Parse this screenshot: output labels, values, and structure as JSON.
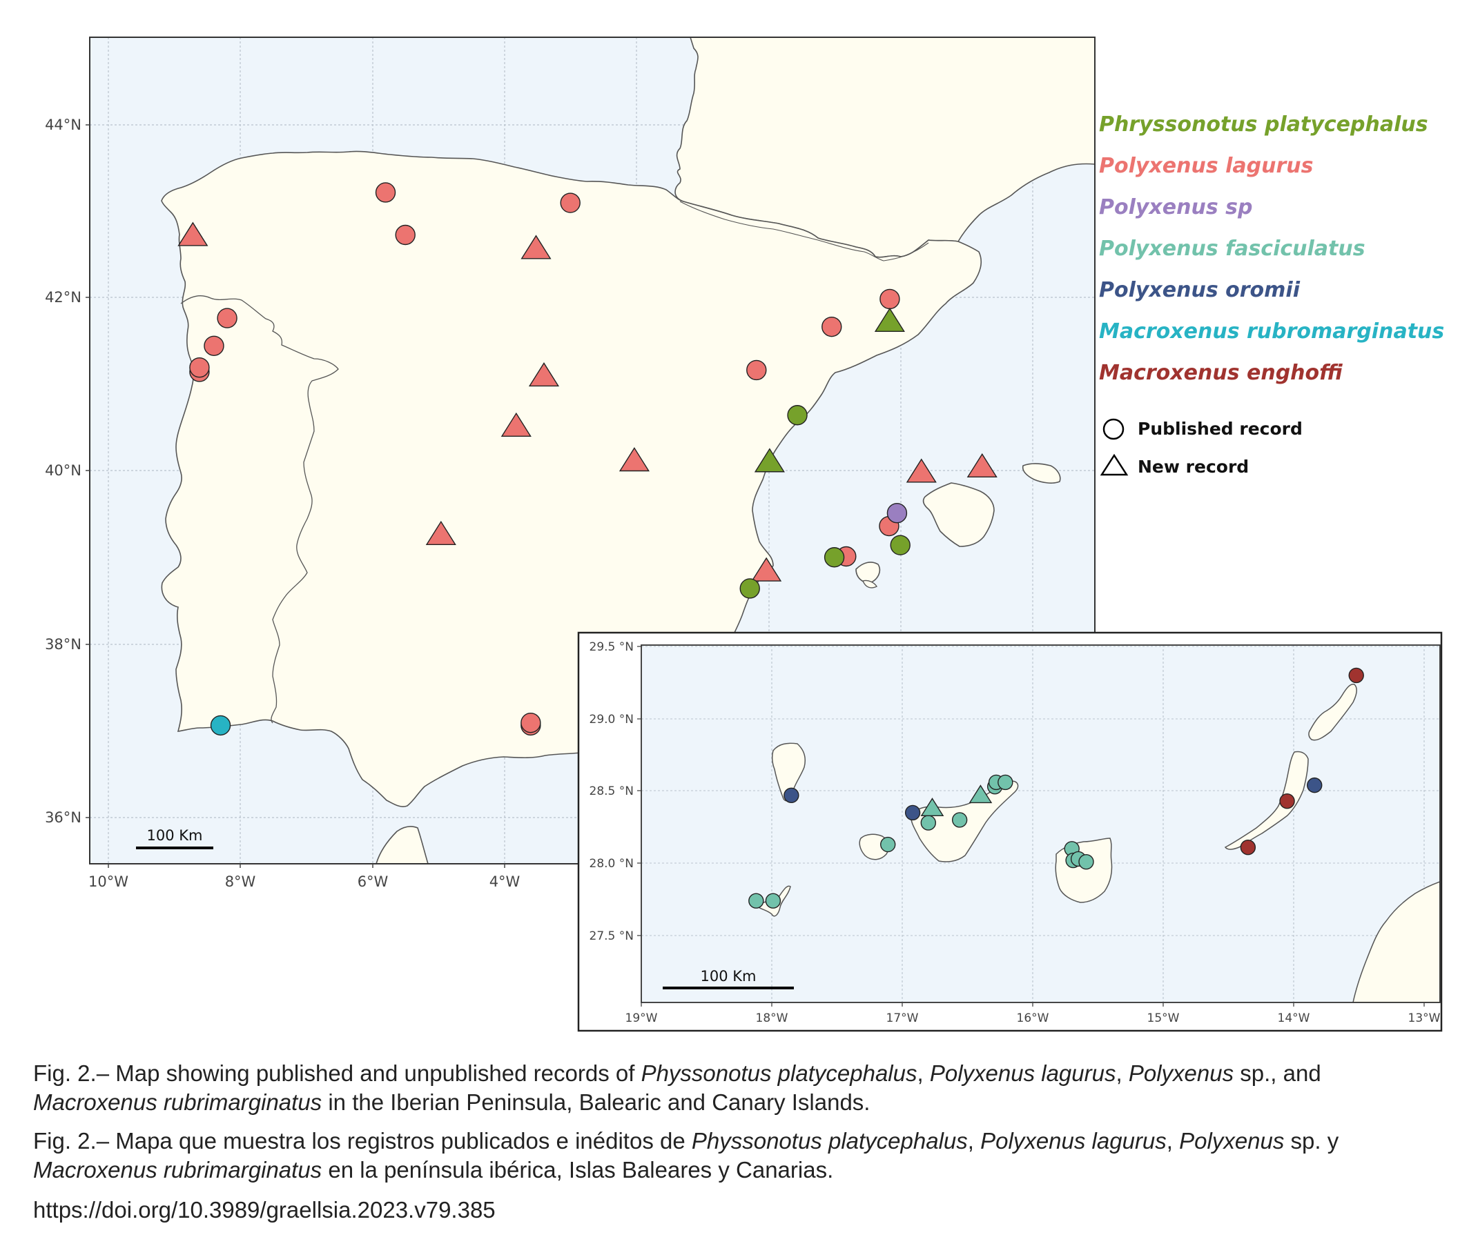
{
  "colors": {
    "sea": "#eef5fb",
    "land": "#fffdf0",
    "coast": "#555555",
    "grid": "#b9c2cc",
    "species": {
      "Phryssonotus platycephalus": "#76a12b",
      "Polyxenus lagurus": "#ec7470",
      "Polyxenus sp": "#9a7fc0",
      "Polyxenus fasciculatus": "#72c2ab",
      "Polyxenus oromii": "#3c5488",
      "Macroxenus rubromarginatus": "#27b3c4",
      "Macroxenus enghoffi": "#a0332f"
    }
  },
  "legend": {
    "species": [
      "Phryssonotus platycephalus",
      "Polyxenus lagurus",
      "Polyxenus sp",
      "Polyxenus fasciculatus",
      "Polyxenus oromii",
      "Macroxenus rubromarginatus",
      "Macroxenus enghoffi"
    ],
    "published_label": "Published record",
    "new_label": "New record"
  },
  "main_map": {
    "lat_ticks": [
      "44°N",
      "42°N",
      "40°N",
      "38°N",
      "36°N"
    ],
    "lon_ticks": [
      "10°W",
      "8°W",
      "6°W",
      "4°W"
    ],
    "scale_label": "100 Km",
    "records": [
      {
        "species": "Polyxenus lagurus",
        "type": "published",
        "lon": -5.8,
        "lat": 43.22
      },
      {
        "species": "Polyxenus lagurus",
        "type": "published",
        "lon": -5.5,
        "lat": 42.73
      },
      {
        "species": "Polyxenus lagurus",
        "type": "published",
        "lon": -3.0,
        "lat": 43.1
      },
      {
        "species": "Polyxenus lagurus",
        "type": "published",
        "lon": -8.2,
        "lat": 41.77
      },
      {
        "species": "Polyxenus lagurus",
        "type": "published",
        "lon": -8.4,
        "lat": 41.45
      },
      {
        "species": "Polyxenus lagurus",
        "type": "published",
        "lon": -8.62,
        "lat": 41.15
      },
      {
        "species": "Polyxenus lagurus",
        "type": "published",
        "lon": -8.62,
        "lat": 41.2
      },
      {
        "species": "Polyxenus lagurus",
        "type": "published",
        "lon": -0.18,
        "lat": 41.17
      },
      {
        "species": "Polyxenus lagurus",
        "type": "published",
        "lon": 0.96,
        "lat": 41.67
      },
      {
        "species": "Polyxenus lagurus",
        "type": "published",
        "lon": 1.84,
        "lat": 41.99
      },
      {
        "species": "Polyxenus lagurus",
        "type": "published",
        "lon": 1.83,
        "lat": 39.37
      },
      {
        "species": "Polyxenus lagurus",
        "type": "published",
        "lon": 1.18,
        "lat": 39.02
      },
      {
        "species": "Polyxenus lagurus",
        "type": "published",
        "lon": -3.6,
        "lat": 37.07
      },
      {
        "species": "Polyxenus lagurus",
        "type": "published",
        "lon": -3.6,
        "lat": 37.1
      },
      {
        "species": "Polyxenus lagurus",
        "type": "new",
        "lon": -8.72,
        "lat": 42.72
      },
      {
        "species": "Polyxenus lagurus",
        "type": "new",
        "lon": -3.52,
        "lat": 42.57
      },
      {
        "species": "Polyxenus lagurus",
        "type": "new",
        "lon": -3.4,
        "lat": 41.1
      },
      {
        "species": "Polyxenus lagurus",
        "type": "new",
        "lon": -3.82,
        "lat": 40.52
      },
      {
        "species": "Polyxenus lagurus",
        "type": "new",
        "lon": -2.03,
        "lat": 40.12
      },
      {
        "species": "Polyxenus lagurus",
        "type": "new",
        "lon": -4.96,
        "lat": 39.27
      },
      {
        "species": "Polyxenus lagurus",
        "type": "new",
        "lon": -0.03,
        "lat": 38.85
      },
      {
        "species": "Polyxenus lagurus",
        "type": "new",
        "lon": 2.32,
        "lat": 39.99
      },
      {
        "species": "Polyxenus lagurus",
        "type": "new",
        "lon": 3.24,
        "lat": 40.05
      },
      {
        "species": "Phryssonotus platycephalus",
        "type": "published",
        "lon": 0.44,
        "lat": 40.65
      },
      {
        "species": "Phryssonotus platycephalus",
        "type": "published",
        "lon": -0.28,
        "lat": 38.65
      },
      {
        "species": "Phryssonotus platycephalus",
        "type": "published",
        "lon": 1.0,
        "lat": 39.01
      },
      {
        "species": "Phryssonotus platycephalus",
        "type": "published",
        "lon": 2.0,
        "lat": 39.15
      },
      {
        "species": "Phryssonotus platycephalus",
        "type": "new",
        "lon": 1.84,
        "lat": 41.73
      },
      {
        "species": "Phryssonotus platycephalus",
        "type": "new",
        "lon": 0.02,
        "lat": 40.11
      },
      {
        "species": "Polyxenus sp",
        "type": "published",
        "lon": 1.95,
        "lat": 39.52
      },
      {
        "species": "Macroxenus rubromarginatus",
        "type": "published",
        "lon": -8.3,
        "lat": 37.07
      }
    ]
  },
  "inset_map": {
    "lat_ticks": [
      "29.5 °N",
      "29.0 °N",
      "28.5 °N",
      "28.0 °N",
      "27.5 °N"
    ],
    "lon_ticks": [
      "19°W",
      "18°W",
      "17°W",
      "16°W",
      "15°W",
      "14°W",
      "13°W"
    ],
    "scale_label": "100 Km",
    "records": [
      {
        "species": "Polyxenus oromii",
        "type": "published",
        "lon": -17.85,
        "lat": 28.47
      },
      {
        "species": "Polyxenus oromii",
        "type": "published",
        "lon": -16.92,
        "lat": 28.35
      },
      {
        "species": "Polyxenus oromii",
        "type": "published",
        "lon": -13.84,
        "lat": 28.54
      },
      {
        "species": "Polyxenus fasciculatus",
        "type": "published",
        "lon": -17.11,
        "lat": 28.13
      },
      {
        "species": "Polyxenus fasciculatus",
        "type": "published",
        "lon": -18.12,
        "lat": 27.74
      },
      {
        "species": "Polyxenus fasciculatus",
        "type": "published",
        "lon": -17.99,
        "lat": 27.74
      },
      {
        "species": "Polyxenus fasciculatus",
        "type": "published",
        "lon": -16.8,
        "lat": 28.28
      },
      {
        "species": "Polyxenus fasciculatus",
        "type": "published",
        "lon": -16.56,
        "lat": 28.3
      },
      {
        "species": "Polyxenus fasciculatus",
        "type": "published",
        "lon": -16.29,
        "lat": 28.53
      },
      {
        "species": "Polyxenus fasciculatus",
        "type": "published",
        "lon": -16.28,
        "lat": 28.56
      },
      {
        "species": "Polyxenus fasciculatus",
        "type": "published",
        "lon": -16.21,
        "lat": 28.56
      },
      {
        "species": "Polyxenus fasciculatus",
        "type": "published",
        "lon": -15.7,
        "lat": 28.1
      },
      {
        "species": "Polyxenus fasciculatus",
        "type": "published",
        "lon": -15.69,
        "lat": 28.02
      },
      {
        "species": "Polyxenus fasciculatus",
        "type": "published",
        "lon": -15.65,
        "lat": 28.03
      },
      {
        "species": "Polyxenus fasciculatus",
        "type": "published",
        "lon": -15.59,
        "lat": 28.01
      },
      {
        "species": "Polyxenus fasciculatus",
        "type": "new",
        "lon": -16.77,
        "lat": 28.38
      },
      {
        "species": "Polyxenus fasciculatus",
        "type": "new",
        "lon": -16.4,
        "lat": 28.47
      },
      {
        "species": "Macroxenus enghoffi",
        "type": "published",
        "lon": -13.52,
        "lat": 29.3
      },
      {
        "species": "Macroxenus enghoffi",
        "type": "published",
        "lon": -14.05,
        "lat": 28.43
      },
      {
        "species": "Macroxenus enghoffi",
        "type": "published",
        "lon": -14.35,
        "lat": 28.11
      }
    ]
  },
  "caption": {
    "en": {
      "prefix": "Fig. 2.– Map showing published and unpublished records of ",
      "sp1": "Physsonotus platycephalus",
      "sep1": ", ",
      "sp2": "Polyxenus lagurus",
      "sep2": ", ",
      "sp3": "Polyxenus",
      "mid": " sp., and ",
      "sp4": "Macroxenus rubrimarginatus",
      "suffix": " in the Iberian Peninsula, Balearic and Canary Islands."
    },
    "es": {
      "prefix": "Fig. 2.– Mapa que muestra los registros publicados e inéditos de ",
      "sp1": "Physsonotus platycephalus",
      "sep1": ", ",
      "sp2": "Polyxenus lagurus",
      "sep2": ", ",
      "sp3": "Polyxenus",
      "mid": " sp. y ",
      "sp4": "Macroxenus rubrimarginatus",
      "suffix": " en la península ibérica, Islas Baleares y Canarias."
    },
    "doi": "https://doi.org/10.3989/graellsia.2023.v79.385"
  }
}
